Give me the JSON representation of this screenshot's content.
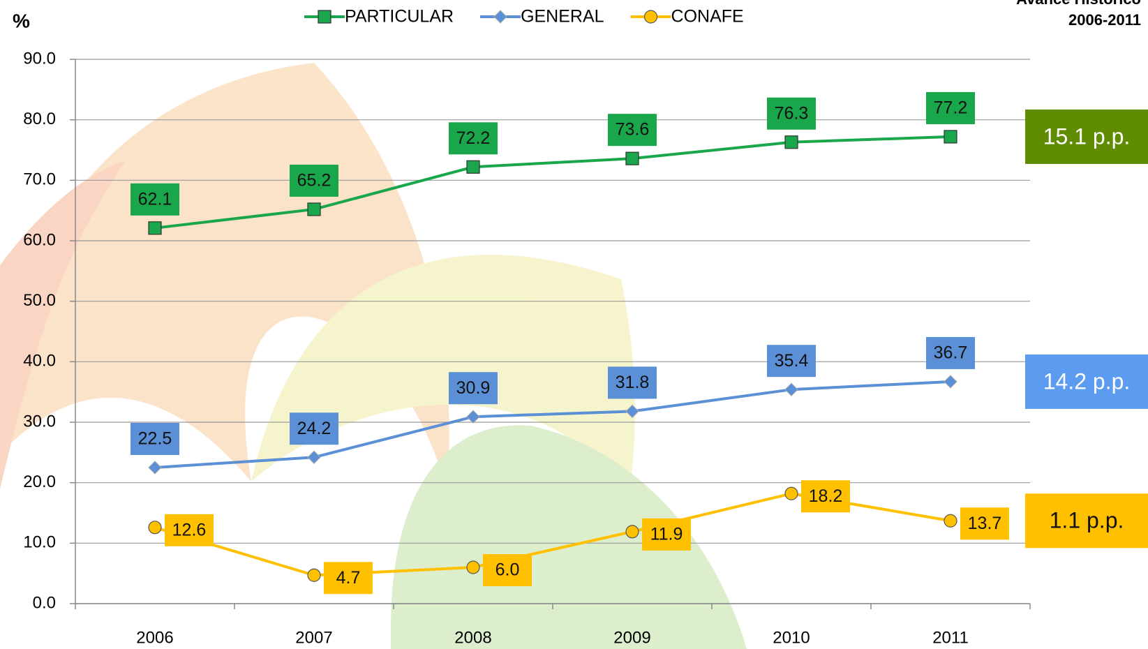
{
  "chart_data": {
    "type": "line",
    "title": "Avance Histórico",
    "subtitle": "2006-2011",
    "y_label": "%",
    "categories": [
      "2006",
      "2007",
      "2008",
      "2009",
      "2010",
      "2011"
    ],
    "series": [
      {
        "name": "PARTICULAR",
        "color": "#1aa64a",
        "marker": "square",
        "values": [
          62.1,
          65.2,
          72.2,
          73.6,
          76.3,
          77.2
        ],
        "value_labels": [
          "62.1",
          "65.2",
          "72.2",
          "73.6",
          "76.3",
          "77.2"
        ]
      },
      {
        "name": "GENERAL",
        "color": "#5b8fd6",
        "marker": "diamond",
        "values": [
          22.5,
          24.2,
          30.9,
          31.8,
          35.4,
          36.7
        ],
        "value_labels": [
          "22.5",
          "24.2",
          "30.9",
          "31.8",
          "35.4",
          "36.7"
        ]
      },
      {
        "name": "CONAFE",
        "color": "#ffc000",
        "marker": "circle",
        "values": [
          12.6,
          4.7,
          6.0,
          11.9,
          18.2,
          13.7
        ],
        "value_labels": [
          "12.6",
          "4.7",
          "6.0",
          "11.9",
          "18.2",
          "13.7"
        ]
      }
    ],
    "ylim": [
      0,
      90
    ],
    "yticks": [
      {
        "value": 0,
        "label": "0.0"
      },
      {
        "value": 10,
        "label": "10.0"
      },
      {
        "value": 20,
        "label": "20.0"
      },
      {
        "value": 30,
        "label": "30.0"
      },
      {
        "value": 40,
        "label": "40.0"
      },
      {
        "value": 50,
        "label": "50.0"
      },
      {
        "value": 60,
        "label": "60.0"
      },
      {
        "value": 70,
        "label": "70.0"
      },
      {
        "value": 80,
        "label": "80.0"
      },
      {
        "value": 90,
        "label": "90.0"
      }
    ],
    "grid": true,
    "annotations": [
      {
        "text": "15.1 p.p.",
        "color": "#5f8c00"
      },
      {
        "text": "14.2 p.p.",
        "color": "#5b9bf0"
      },
      {
        "text": "1.1 p.p.",
        "color": "#ffc000"
      }
    ]
  }
}
